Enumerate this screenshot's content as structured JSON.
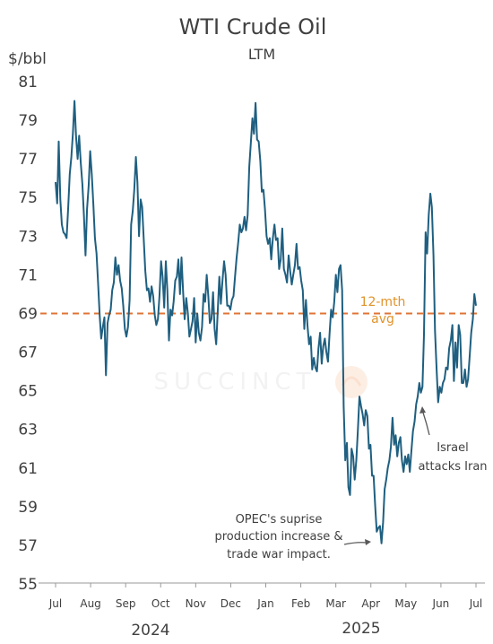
{
  "chart_data": {
    "type": "line",
    "title": "WTI Crude Oil",
    "subtitle": "LTM",
    "ylabel": "$/bbl",
    "ylim": [
      55,
      81
    ],
    "yticks": [
      55,
      57,
      59,
      61,
      63,
      65,
      67,
      69,
      71,
      73,
      75,
      77,
      79,
      81
    ],
    "xtick_labels": [
      "Jul",
      "Aug",
      "Sep",
      "Oct",
      "Nov",
      "Dec",
      "Jan",
      "Feb",
      "Mar",
      "Apr",
      "May",
      "Jun",
      "Jul"
    ],
    "year_labels": [
      "2024",
      "2025"
    ],
    "series": [
      {
        "color": "#1f5f80",
        "values": [
          75.8,
          74.7,
          77.9,
          74.9,
          73.6,
          73.2,
          73.1,
          72.9,
          74.5,
          76.2,
          77.1,
          78.3,
          80.0,
          78.2,
          77.0,
          78.2,
          76.8,
          75.7,
          74.1,
          72.0,
          74.4,
          75.6,
          77.4,
          76.2,
          74.6,
          72.9,
          72.1,
          70.6,
          68.9,
          67.7,
          68.3,
          68.8,
          65.8,
          68.5,
          68.9,
          69.2,
          70.2,
          70.6,
          71.9,
          71.0,
          71.5,
          70.7,
          70.3,
          69.4,
          68.2,
          67.8,
          68.3,
          69.7,
          73.6,
          74.3,
          75.4,
          77.1,
          75.8,
          73.0,
          74.9,
          74.5,
          72.8,
          71.2,
          70.2,
          70.3,
          69.6,
          70.4,
          69.9,
          68.9,
          68.4,
          68.7,
          69.9,
          71.7,
          70.9,
          69.3,
          71.7,
          70.2,
          67.6,
          69.2,
          68.9,
          69.6,
          70.7,
          70.9,
          71.8,
          70.0,
          71.9,
          70.1,
          68.7,
          69.8,
          69.0,
          67.8,
          68.2,
          68.6,
          69.8,
          67.5,
          69.0,
          68.0,
          67.6,
          68.3,
          70.0,
          69.6,
          71.0,
          69.9,
          68.5,
          68.7,
          70.1,
          68.2,
          67.4,
          69.1,
          70.9,
          69.5,
          70.7,
          71.7,
          71.0,
          69.4,
          69.4,
          69.2,
          69.7,
          69.9,
          70.9,
          71.9,
          72.7,
          73.6,
          73.2,
          73.4,
          74.0,
          73.3,
          74.1,
          76.6,
          77.8,
          79.1,
          78.3,
          79.9,
          78.0,
          77.9,
          76.9,
          75.3,
          75.4,
          74.4,
          73.0,
          72.6,
          72.9,
          71.8,
          72.9,
          73.6,
          72.8,
          72.9,
          71.3,
          71.8,
          73.4,
          71.3,
          71.0,
          70.6,
          72.0,
          71.2,
          70.5,
          71.0,
          71.5,
          72.6,
          71.3,
          71.4,
          70.7,
          70.2,
          68.2,
          69.7,
          68.4,
          67.4,
          67.8,
          66.1,
          66.7,
          66.2,
          66.0,
          67.2,
          68.0,
          66.4,
          67.3,
          67.7,
          67.0,
          66.5,
          67.9,
          69.2,
          68.8,
          69.6,
          71.0,
          70.1,
          71.3,
          71.5,
          70.2,
          64.2,
          61.4,
          62.3,
          60.0,
          59.6,
          62.0,
          61.6,
          60.4,
          61.4,
          63.0,
          64.7,
          64.2,
          63.8,
          63.2,
          64.0,
          63.7,
          62.0,
          62.2,
          60.6,
          60.6,
          59.0,
          57.7,
          57.9,
          58.0,
          57.1,
          58.2,
          59.9,
          60.4,
          61.0,
          61.4,
          62.1,
          63.6,
          62.2,
          62.7,
          61.6,
          62.3,
          62.6,
          61.4,
          60.8,
          61.6,
          61.2,
          61.7,
          60.8,
          61.9,
          62.9,
          63.4,
          64.3,
          64.7,
          65.4,
          64.9,
          65.2,
          67.9,
          73.2,
          72.1,
          74.1,
          75.2,
          74.5,
          72.0,
          68.1,
          66.1,
          64.4,
          65.2,
          64.9,
          65.4,
          65.6,
          66.2,
          66.1,
          67.2,
          67.6,
          68.4,
          65.5,
          67.5,
          66.2,
          68.4,
          67.9,
          65.4,
          65.4,
          66.1,
          65.2,
          65.6,
          66.8,
          68.0,
          68.7,
          70.0,
          69.4
        ]
      },
      {
        "name": "12-mth avg",
        "color": "#e07436",
        "style": "dashed",
        "value": 69.0
      }
    ],
    "annotations": [
      {
        "text": [
          "12-mth",
          "avg"
        ]
      },
      {
        "text": [
          "OPEC's suprise",
          "production increase &",
          "trade war impact."
        ]
      },
      {
        "text": [
          "Israel",
          "attacks Iran"
        ]
      }
    ],
    "watermark": "SUCCINCT"
  }
}
